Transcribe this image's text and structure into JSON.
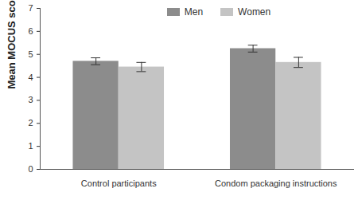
{
  "chart_data": {
    "type": "bar",
    "y_label": "Mean MOCUS score (± SE)",
    "categories": [
      "Control participants",
      "Condom packaging instructions"
    ],
    "series": [
      {
        "name": "Men",
        "color": "#8c8c8c",
        "values": [
          4.7,
          5.25
        ],
        "errors": [
          0.15,
          0.15
        ]
      },
      {
        "name": "Women",
        "color": "#c4c4c4",
        "values": [
          4.45,
          4.65
        ],
        "errors": [
          0.2,
          0.22
        ]
      }
    ],
    "ylim": [
      0,
      7
    ],
    "yticks": [
      0,
      1,
      2,
      3,
      4,
      5,
      6,
      7
    ],
    "legend": "top",
    "grid": false
  }
}
